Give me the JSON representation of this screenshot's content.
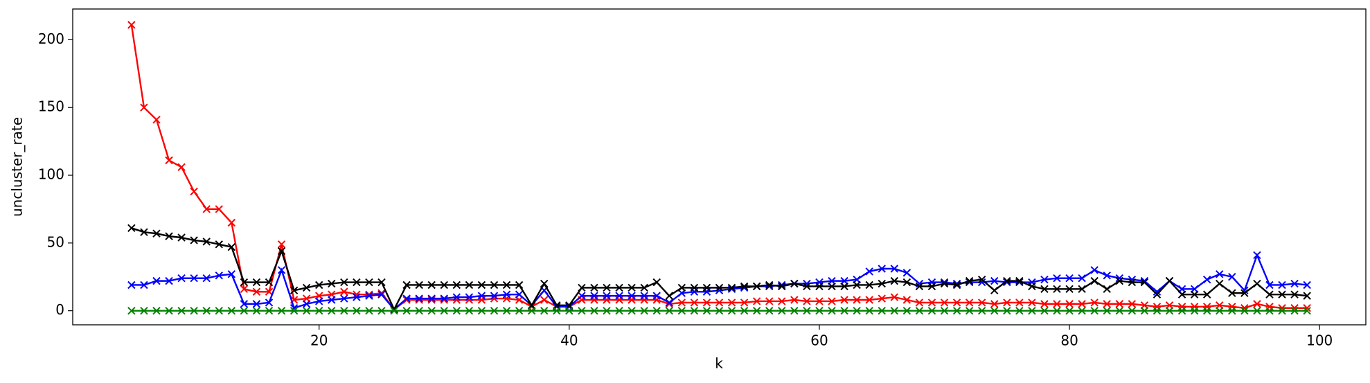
{
  "chart_data": {
    "type": "line",
    "x_label": "k",
    "y_label": "uncluster_rate",
    "x": [
      5,
      6,
      7,
      8,
      9,
      10,
      11,
      12,
      13,
      14,
      15,
      16,
      17,
      18,
      19,
      20,
      21,
      22,
      23,
      24,
      25,
      26,
      27,
      28,
      29,
      30,
      31,
      32,
      33,
      34,
      35,
      36,
      37,
      38,
      39,
      40,
      41,
      42,
      43,
      44,
      45,
      46,
      47,
      48,
      49,
      50,
      51,
      52,
      53,
      54,
      55,
      56,
      57,
      58,
      59,
      60,
      61,
      62,
      63,
      64,
      65,
      66,
      67,
      68,
      69,
      70,
      71,
      72,
      73,
      74,
      75,
      76,
      77,
      78,
      79,
      80,
      81,
      82,
      83,
      84,
      85,
      86,
      87,
      88,
      89,
      90,
      91,
      92,
      93,
      94,
      95,
      96,
      97,
      98,
      99
    ],
    "series": [
      {
        "color": "#ff0000",
        "values": [
          211,
          150,
          141,
          111,
          106,
          88,
          75,
          75,
          65,
          16,
          14,
          14,
          49,
          8,
          9,
          11,
          12,
          14,
          12,
          12,
          13,
          1,
          8,
          8,
          8,
          8,
          8,
          8,
          8,
          9,
          9,
          8,
          3,
          8,
          3,
          3,
          8,
          8,
          8,
          8,
          8,
          8,
          8,
          5,
          6,
          6,
          6,
          6,
          6,
          6,
          7,
          7,
          7,
          8,
          7,
          7,
          7,
          8,
          8,
          8,
          9,
          10,
          8,
          6,
          6,
          6,
          6,
          6,
          6,
          5,
          6,
          6,
          6,
          5,
          5,
          5,
          5,
          6,
          5,
          5,
          5,
          4,
          3,
          4,
          3,
          3,
          3,
          4,
          3,
          2,
          5,
          3,
          2,
          2,
          2
        ]
      },
      {
        "color": "#0000ff",
        "values": [
          19,
          19,
          22,
          22,
          24,
          24,
          24,
          26,
          27,
          5,
          5,
          6,
          30,
          2,
          5,
          7,
          8,
          9,
          10,
          11,
          12,
          1,
          9,
          9,
          9,
          9,
          10,
          10,
          11,
          11,
          12,
          12,
          4,
          15,
          3,
          3,
          11,
          11,
          11,
          11,
          11,
          11,
          11,
          6,
          13,
          14,
          14,
          15,
          16,
          17,
          18,
          18,
          19,
          20,
          20,
          21,
          22,
          22,
          23,
          29,
          31,
          31,
          28,
          20,
          21,
          21,
          20,
          21,
          21,
          22,
          21,
          21,
          21,
          23,
          24,
          24,
          24,
          30,
          26,
          24,
          23,
          22,
          14,
          22,
          16,
          16,
          23,
          27,
          25,
          15,
          41,
          19,
          19,
          20,
          19
        ]
      },
      {
        "color": "#000000",
        "values": [
          61,
          58,
          57,
          55,
          54,
          52,
          51,
          49,
          47,
          21,
          21,
          21,
          44,
          15,
          17,
          19,
          20,
          21,
          21,
          21,
          21,
          1,
          19,
          19,
          19,
          19,
          19,
          19,
          19,
          19,
          19,
          19,
          4,
          20,
          4,
          4,
          17,
          17,
          17,
          17,
          17,
          17,
          21,
          11,
          17,
          17,
          17,
          17,
          17,
          18,
          18,
          19,
          18,
          20,
          18,
          18,
          18,
          18,
          19,
          19,
          20,
          22,
          21,
          18,
          18,
          20,
          19,
          22,
          23,
          15,
          22,
          22,
          18,
          16,
          16,
          16,
          16,
          22,
          16,
          22,
          21,
          21,
          12,
          22,
          12,
          12,
          12,
          20,
          13,
          13,
          20,
          12,
          12,
          12,
          11
        ]
      },
      {
        "color": "#008000",
        "values": [
          0,
          0,
          0,
          0,
          0,
          0,
          0,
          0,
          0,
          0,
          0,
          0,
          0,
          0,
          0,
          0,
          0,
          0,
          0,
          0,
          0,
          0,
          0,
          0,
          0,
          0,
          0,
          0,
          0,
          0,
          0,
          0,
          0,
          0,
          0,
          0,
          0,
          0,
          0,
          0,
          0,
          0,
          0,
          0,
          0,
          0,
          0,
          0,
          0,
          0,
          0,
          0,
          0,
          0,
          0,
          0,
          0,
          0,
          0,
          0,
          0,
          0,
          0,
          0,
          0,
          0,
          0,
          0,
          0,
          0,
          0,
          0,
          0,
          0,
          0,
          0,
          0,
          0,
          0,
          0,
          0,
          0,
          0,
          0,
          0,
          0,
          0,
          0,
          0,
          0,
          0,
          0,
          0,
          0,
          0
        ]
      }
    ],
    "marker": "x",
    "xlim": [
      0.3,
      103.7
    ],
    "ylim": [
      -10.4,
      222.7
    ],
    "xticks": [
      20,
      40,
      60,
      80,
      100
    ],
    "yticks": [
      0,
      50,
      100,
      150,
      200
    ]
  }
}
